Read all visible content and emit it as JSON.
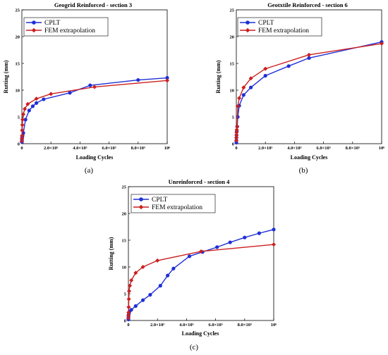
{
  "colors": {
    "cplt": "#1f2fd6",
    "fem": "#cc1f1f",
    "axis": "#000000"
  },
  "chart_data": [
    {
      "type": "line",
      "title": "Geogrid Reinforced - section 3",
      "caption": "(a)",
      "xlabel": "Loading Cycles",
      "ylabel": "Rutting (mm)",
      "xlim": [
        0,
        1000000
      ],
      "ylim": [
        0,
        25
      ],
      "xticks": [
        0,
        200000,
        400000,
        600000,
        800000,
        1000000
      ],
      "xtick_labels": [
        "0",
        "2.0×10⁵",
        "4.0×10⁵",
        "6.0×10⁵",
        "8.0×10⁵",
        "10⁶"
      ],
      "yticks": [
        0,
        5,
        10,
        15,
        20,
        25
      ],
      "legend_position": "top-left",
      "series": [
        {
          "name": "CPLT",
          "color_key": "cplt",
          "marker": "circle",
          "x": [
            0,
            500,
            1000,
            2000,
            5000,
            10000,
            25000,
            50000,
            75000,
            100000,
            150000,
            330000,
            470000,
            800000,
            1000000
          ],
          "y": [
            0.3,
            0.6,
            0.9,
            1.2,
            1.5,
            2.0,
            4.5,
            6.2,
            7.0,
            7.6,
            8.3,
            9.5,
            10.9,
            11.9,
            12.3
          ]
        },
        {
          "name": "FEM extrapolation",
          "color_key": "fem",
          "marker": "diamond",
          "x": [
            0,
            500,
            1000,
            2000,
            3000,
            5000,
            10000,
            20000,
            40000,
            100000,
            200000,
            500000,
            1000000
          ],
          "y": [
            0.5,
            1.0,
            1.5,
            2.5,
            3.5,
            4.5,
            5.5,
            6.5,
            7.4,
            8.4,
            9.3,
            10.6,
            11.8
          ]
        }
      ]
    },
    {
      "type": "line",
      "title": "Geotxtile Reinforced - section 6",
      "caption": "(b)",
      "xlabel": "Loading Cycles",
      "ylabel": "Rutting (mm)",
      "xlim": [
        0,
        1000000
      ],
      "ylim": [
        0,
        25
      ],
      "xticks": [
        0,
        200000,
        400000,
        600000,
        800000,
        1000000
      ],
      "xtick_labels": [
        "0",
        "2.0×10⁵",
        "4.0×10⁵",
        "6.0×10⁵",
        "8.0×10⁵",
        "10⁶"
      ],
      "yticks": [
        0,
        5,
        10,
        15,
        20,
        25
      ],
      "legend_position": "top-left",
      "series": [
        {
          "name": "CPLT",
          "color_key": "cplt",
          "marker": "circle",
          "x": [
            0,
            300,
            700,
            1500,
            3000,
            6000,
            10000,
            20000,
            50000,
            100000,
            200000,
            360000,
            500000,
            1000000
          ],
          "y": [
            0.2,
            0.6,
            1.1,
            1.6,
            2.3,
            3.2,
            5.0,
            7.1,
            9.1,
            10.5,
            12.7,
            14.5,
            16.0,
            19.0
          ]
        },
        {
          "name": "FEM extrapolation",
          "color_key": "fem",
          "marker": "diamond",
          "x": [
            0,
            300,
            700,
            1500,
            3000,
            6000,
            10000,
            20000,
            50000,
            100000,
            200000,
            500000,
            1000000
          ],
          "y": [
            0.6,
            1.1,
            1.6,
            2.1,
            2.6,
            3.2,
            7.0,
            8.5,
            10.5,
            12.2,
            14.0,
            16.6,
            18.7
          ]
        }
      ]
    },
    {
      "type": "line",
      "title": "Unreinforced - section 4",
      "caption": "(c)",
      "xlabel": "Loading Cycles",
      "ylabel": "Rutting (mm)",
      "xlim": [
        0,
        1000000
      ],
      "ylim": [
        0,
        25
      ],
      "xticks": [
        0,
        200000,
        400000,
        600000,
        800000,
        1000000
      ],
      "xtick_labels": [
        "0",
        "2.0×10⁵",
        "4.0×10⁵",
        "6.0×10⁵",
        "8.0×10⁵",
        "10⁶"
      ],
      "yticks": [
        0,
        5,
        10,
        15,
        20,
        25
      ],
      "legend_position": "top-left",
      "series": [
        {
          "name": "CPLT",
          "color_key": "cplt",
          "marker": "circle",
          "x": [
            0,
            500,
            1000,
            2000,
            4000,
            8000,
            20000,
            50000,
            100000,
            150000,
            220000,
            270000,
            310000,
            420000,
            510000,
            610000,
            700000,
            800000,
            900000,
            1000000
          ],
          "y": [
            0.2,
            0.5,
            0.8,
            1.1,
            1.4,
            1.7,
            2.0,
            2.7,
            3.8,
            4.8,
            6.5,
            8.4,
            9.7,
            12.0,
            12.8,
            13.7,
            14.6,
            15.5,
            16.3,
            17.0
          ]
        },
        {
          "name": "FEM extrapolation",
          "color_key": "fem",
          "marker": "diamond",
          "x": [
            0,
            500,
            1000,
            2000,
            3000,
            5000,
            10000,
            20000,
            50000,
            100000,
            200000,
            500000,
            1000000
          ],
          "y": [
            0.5,
            1.0,
            1.5,
            2.5,
            4.0,
            5.5,
            6.5,
            7.5,
            8.9,
            10.0,
            11.2,
            12.9,
            14.2
          ]
        }
      ]
    }
  ]
}
